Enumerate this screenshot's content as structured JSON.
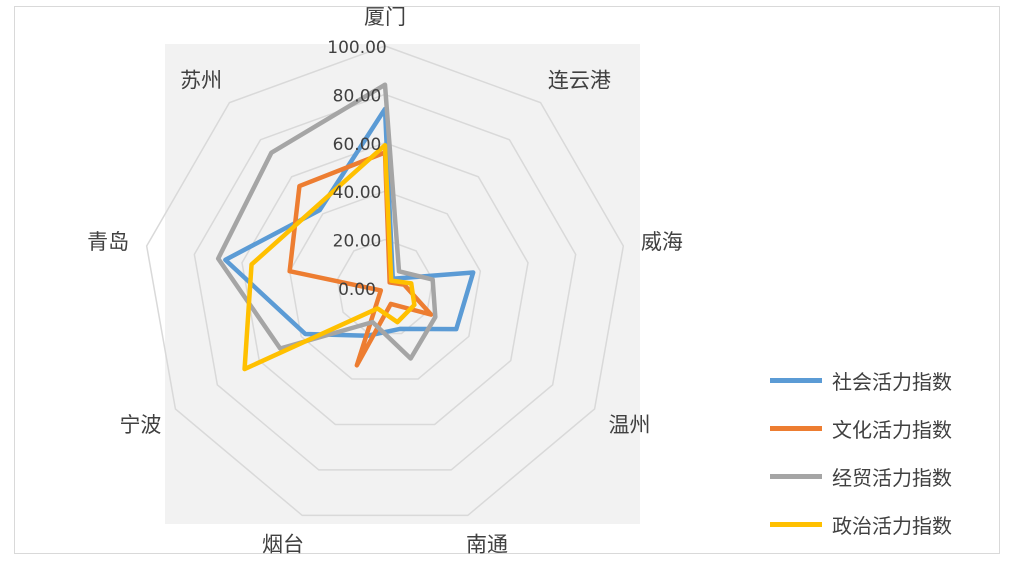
{
  "chart_data": {
    "type": "radar",
    "title": "",
    "categories": [
      "厦门",
      "连云港",
      "威海",
      "温州",
      "南通",
      "烟台",
      "宁波",
      "青岛",
      "苏州"
    ],
    "rlim": [
      0,
      100
    ],
    "ticks": [
      "0.00",
      "20.00",
      "40.00",
      "60.00",
      "80.00",
      "100.00"
    ],
    "grid": true,
    "legend_position": "right",
    "series": [
      {
        "name": "社会活力指数",
        "color": "#5b9bd5",
        "values": [
          74,
          5,
          37,
          34,
          18,
          21,
          38,
          67,
          42
        ]
      },
      {
        "name": "文化活力指数",
        "color": "#ed7d31",
        "values": [
          56,
          3,
          8,
          22,
          7,
          34,
          2,
          40,
          55
        ]
      },
      {
        "name": "经贸活力指数",
        "color": "#a5a5a5",
        "values": [
          84,
          9,
          20,
          24,
          31,
          15,
          50,
          70,
          73
        ]
      },
      {
        "name": "政治活力指数",
        "color": "#ffc000",
        "values": [
          59,
          4,
          11,
          14,
          15,
          9,
          67,
          56,
          44
        ]
      }
    ]
  }
}
